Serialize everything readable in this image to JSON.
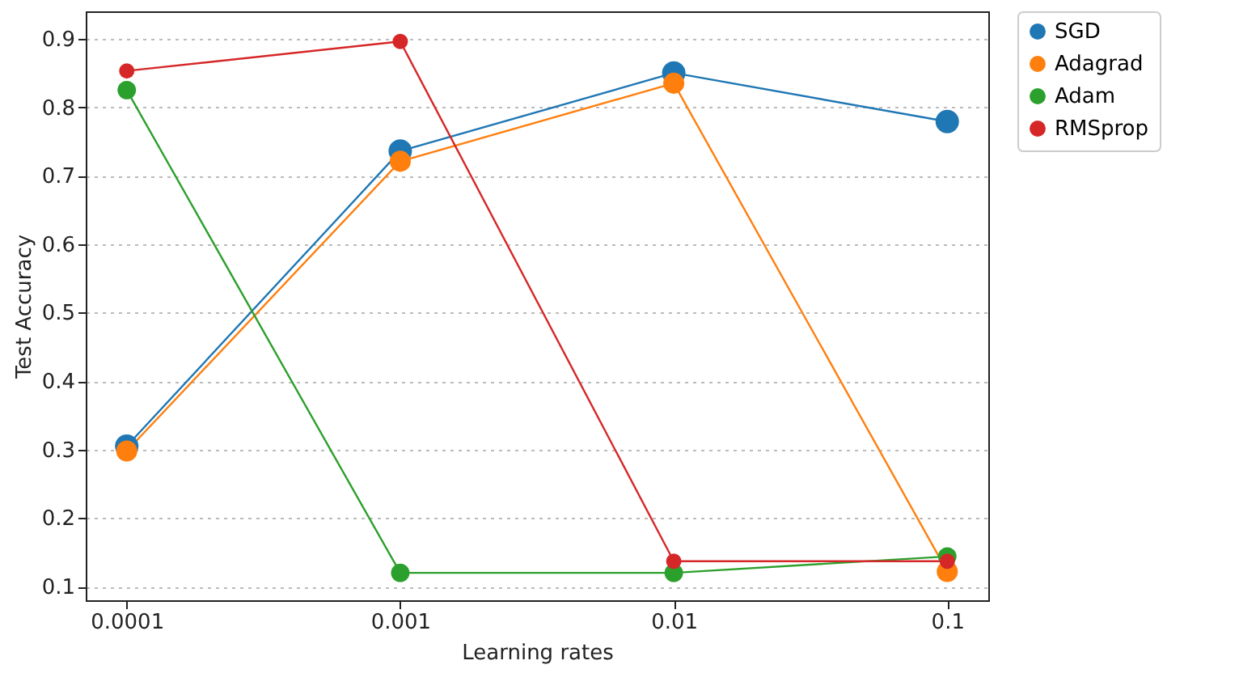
{
  "chart_data": {
    "type": "line",
    "xlabel": "Learning rates",
    "ylabel": "Test Accuracy",
    "categories": [
      "0.0001",
      "0.001",
      "0.01",
      "0.1"
    ],
    "series": [
      {
        "name": "SGD",
        "color": "#1f77b4",
        "values": [
          0.305,
          0.736,
          0.85,
          0.779
        ]
      },
      {
        "name": "Adagrad",
        "color": "#ff7f0e",
        "values": [
          0.298,
          0.721,
          0.835,
          0.122
        ]
      },
      {
        "name": "Adam",
        "color": "#2ca02c",
        "values": [
          0.825,
          0.12,
          0.12,
          0.144
        ]
      },
      {
        "name": "RMSprop",
        "color": "#d62728",
        "values": [
          0.853,
          0.896,
          0.137,
          0.137
        ]
      }
    ],
    "ylim": [
      0.08,
      0.94
    ],
    "yticks": [
      0.1,
      0.2,
      0.3,
      0.4,
      0.5,
      0.6,
      0.7,
      0.8,
      0.9
    ],
    "grid": "y",
    "legend": "right",
    "marker": "circle",
    "line_style": "solid"
  }
}
